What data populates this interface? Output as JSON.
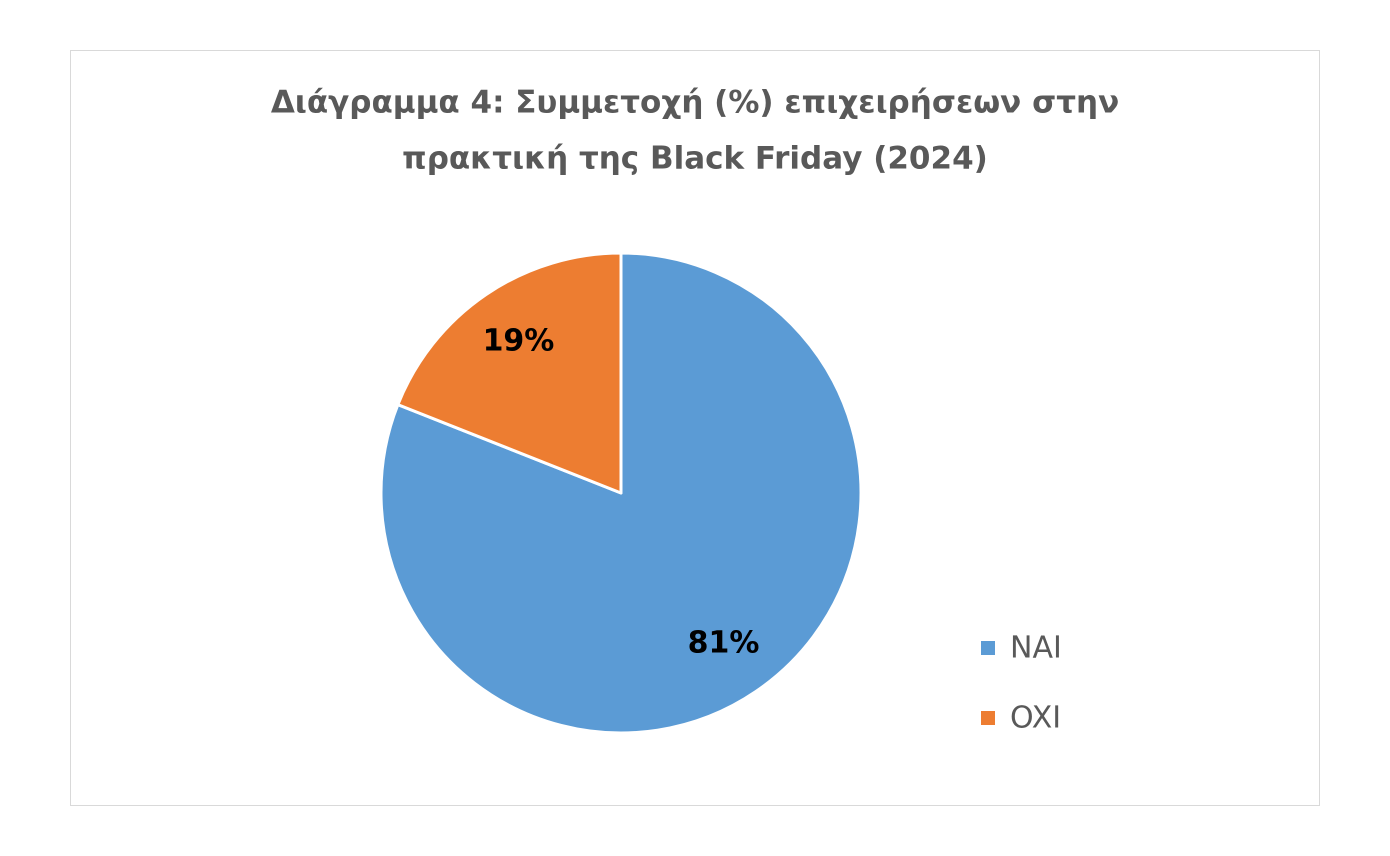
{
  "chart_data": {
    "type": "pie",
    "title": [
      "Διάγραμμα 4: Συμμετοχή (%) επιχειρήσεων στην",
      "πρακτική της Black Friday (2024)"
    ],
    "categories": [
      "NAI",
      "OXI"
    ],
    "values": [
      81,
      19
    ],
    "value_labels": [
      "81%",
      "19%"
    ],
    "colors": [
      "#5b9bd5",
      "#ed7d31"
    ],
    "legend": "right"
  }
}
